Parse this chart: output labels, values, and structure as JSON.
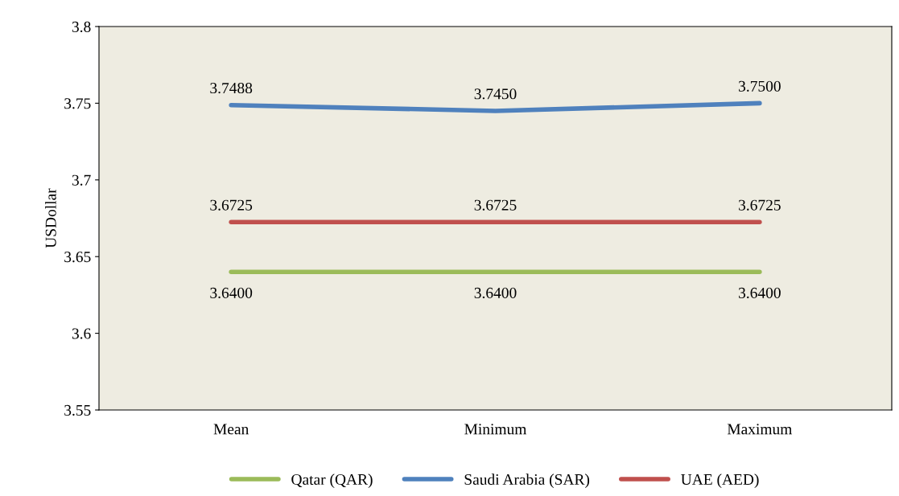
{
  "chart_data": {
    "type": "line",
    "ylabel": "USDollar",
    "categories": [
      "Mean",
      "Minimum",
      "Maximum"
    ],
    "series": [
      {
        "name": "Qatar (QAR)",
        "color": "#9bbb59",
        "values": [
          3.64,
          3.64,
          3.64
        ],
        "value_labels": [
          "3.6400",
          "3.6400",
          "3.6400"
        ]
      },
      {
        "name": "Saudi Arabia (SAR)",
        "color": "#4f81bd",
        "values": [
          3.7488,
          3.745,
          3.75
        ],
        "value_labels": [
          "3.7488",
          "3.7450",
          "3.7500"
        ]
      },
      {
        "name": "UAE (AED)",
        "color": "#c0504d",
        "values": [
          3.6725,
          3.6725,
          3.6725
        ],
        "value_labels": [
          "3.6725",
          "3.6725",
          "3.6725"
        ]
      }
    ],
    "ylim": [
      3.55,
      3.8
    ],
    "yticks": [
      3.55,
      3.6,
      3.65,
      3.7,
      3.75,
      3.8
    ],
    "grid": false,
    "legend": "bottom",
    "marker": "none",
    "line_style": "solid"
  }
}
